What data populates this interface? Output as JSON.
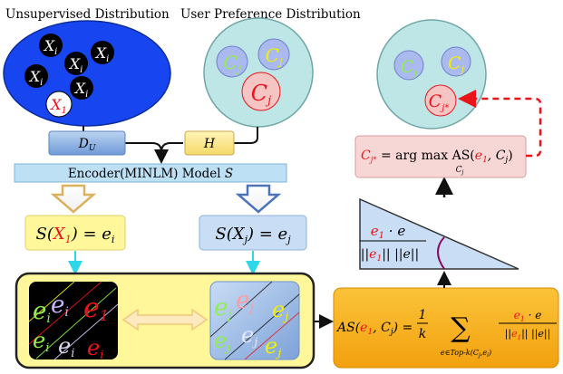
{
  "headings": {
    "unsupervised": "Unsupervised Distribution",
    "user_pref": "User Preference Distribution"
  },
  "unsupervised_nodes": [
    "X_i",
    "X_i",
    "X_i",
    "X_i",
    "X_i",
    "X_1"
  ],
  "user_pref_nodes": [
    "C_j",
    "C_j",
    "C_j"
  ],
  "top_right_nodes": [
    "C_j",
    "C_j",
    "C_j*"
  ],
  "labels": {
    "du": "D_U",
    "h": "H",
    "encoder": "Encoder(MINLM) Model S",
    "left_out": "S(X_1) = e_i",
    "right_out": "S(X_j) = e_j",
    "argmax": "C_j* = arg max AS(e_1, C_j)",
    "argmax_sub": "C_j",
    "triangle": "e_1 · e / ||e_1|| ||e||",
    "as_formula": "AS(e_1, C_j) = 1/k Σ e∈Top-k(C_j, e_i) e_1 · e / ||e_1|| ||e||"
  },
  "colors": {
    "blue_ellipse": "#1745f0",
    "teal_circle": "#bfe6e6",
    "yellow_panel": "#fff79a",
    "orange_box": "#f5ad1a",
    "encoder_bar": "#bde0f5",
    "argmax_box": "#f7d6d6",
    "red": "#e8151b",
    "cyan_arrow": "#2dd7e8"
  }
}
